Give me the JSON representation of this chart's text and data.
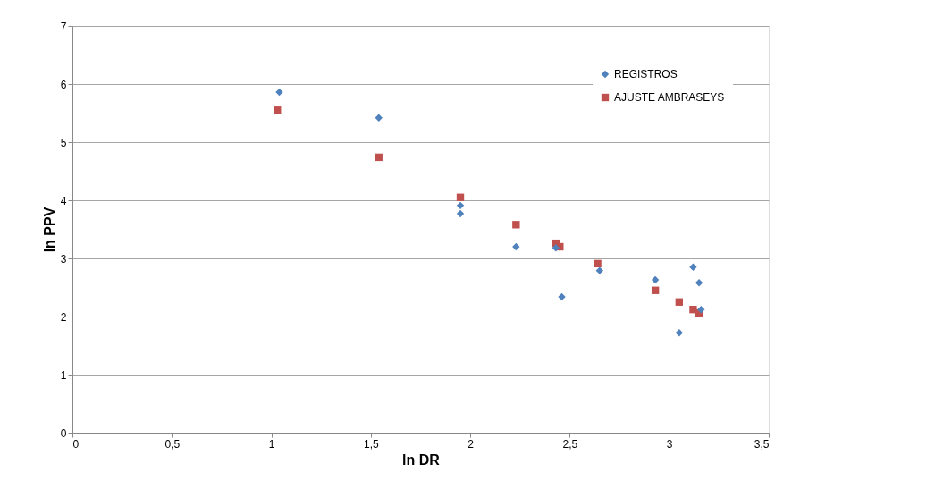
{
  "chart_data": {
    "type": "scatter",
    "xlabel": "ln DR",
    "ylabel": "ln PPV",
    "xlim": [
      0,
      3.5
    ],
    "xticks": [
      0,
      {
        "value": 0.5,
        "label": "0,5"
      },
      1,
      {
        "value": 1.5,
        "label": "1,5"
      },
      2,
      {
        "value": 2.5,
        "label": "2,5"
      },
      3,
      {
        "value": 3.5,
        "label": "3,5"
      }
    ],
    "ylim": [
      0,
      7
    ],
    "yticks": [
      0,
      1,
      2,
      3,
      4,
      5,
      6,
      7
    ],
    "grid": "y",
    "legend": "top right",
    "series": [
      {
        "name": "REGISTROS",
        "color": "#4f81bd",
        "marker": "diamond",
        "x": [
          1.04,
          1.54,
          1.95,
          1.95,
          2.23,
          2.43,
          2.46,
          2.65,
          2.93,
          3.12,
          3.15,
          3.16,
          3.05
        ],
        "values": [
          5.86,
          5.42,
          3.91,
          3.77,
          3.2,
          3.18,
          2.34,
          2.79,
          2.63,
          2.85,
          2.58,
          2.12,
          1.72
        ]
      },
      {
        "name": "AJUSTE AMBRASEYS",
        "color": "#c0504d",
        "marker": "square",
        "x": [
          1.03,
          1.54,
          1.95,
          2.23,
          2.43,
          2.45,
          2.64,
          2.93,
          3.05,
          3.12,
          3.15
        ],
        "values": [
          5.55,
          4.74,
          4.05,
          3.58,
          3.26,
          3.2,
          2.91,
          2.45,
          2.25,
          2.12,
          2.06
        ]
      }
    ]
  }
}
